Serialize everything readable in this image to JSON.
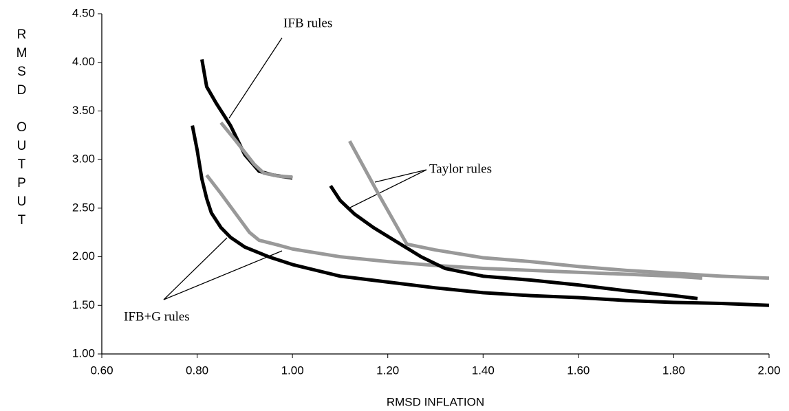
{
  "chart_data": {
    "type": "line",
    "x_label": "RMSD INFLATION",
    "y_label": "RMSD OUTPUT",
    "annotations": [
      "IFB rules",
      "Taylor rules",
      "IFB+G rules"
    ],
    "xlim": [
      0.6,
      2.0
    ],
    "xticks": [
      {
        "value": 0.6,
        "label": "0.60"
      },
      {
        "value": 0.8,
        "label": "0.80"
      },
      {
        "value": 1.0,
        "label": "1.00"
      },
      {
        "value": 1.2,
        "label": "1.20"
      },
      {
        "value": 1.4,
        "label": "1.40"
      },
      {
        "value": 1.6,
        "label": "1.60"
      },
      {
        "value": 1.8,
        "label": "1.80"
      },
      {
        "value": 2.0,
        "label": "2.00"
      }
    ],
    "ylim": [
      1.0,
      4.5
    ],
    "yticks": [
      {
        "value": 1.0,
        "label": "1.00"
      },
      {
        "value": 1.5,
        "label": "1.50"
      },
      {
        "value": 2.0,
        "label": "2.00"
      },
      {
        "value": 2.5,
        "label": "2.50"
      },
      {
        "value": 3.0,
        "label": "3.00"
      },
      {
        "value": 3.5,
        "label": "3.50"
      },
      {
        "value": 4.0,
        "label": "4.00"
      },
      {
        "value": 4.5,
        "label": "4.50"
      }
    ],
    "series": [
      {
        "color": "#000000",
        "x": [
          0.81,
          0.82,
          0.84,
          0.87,
          0.9,
          0.93,
          0.96,
          1.0
        ],
        "values": [
          4.03,
          3.75,
          3.58,
          3.35,
          3.05,
          2.88,
          2.84,
          2.81
        ]
      },
      {
        "color": "#999999",
        "x": [
          0.85,
          0.88,
          0.92,
          0.94,
          0.97,
          1.0
        ],
        "values": [
          3.38,
          3.2,
          2.95,
          2.86,
          2.83,
          2.82
        ]
      },
      {
        "color": "#000000",
        "x": [
          0.79,
          0.8,
          0.81,
          0.82,
          0.83,
          0.85,
          0.87,
          0.9,
          0.95,
          1.0,
          1.05,
          1.1,
          1.15,
          1.2,
          1.3,
          1.4,
          1.5,
          1.6,
          1.7,
          1.8,
          1.9,
          2.0
        ],
        "values": [
          3.35,
          3.1,
          2.8,
          2.6,
          2.45,
          2.3,
          2.2,
          2.1,
          2.0,
          1.92,
          1.86,
          1.8,
          1.77,
          1.74,
          1.68,
          1.63,
          1.6,
          1.58,
          1.55,
          1.53,
          1.52,
          1.5
        ]
      },
      {
        "color": "#999999",
        "x": [
          0.82,
          0.85,
          0.88,
          0.91,
          0.93,
          0.97,
          1.0,
          1.05,
          1.1,
          1.2,
          1.3,
          1.4,
          1.5,
          1.6,
          1.7,
          1.8,
          1.86
        ],
        "values": [
          2.84,
          2.65,
          2.45,
          2.25,
          2.17,
          2.12,
          2.08,
          2.04,
          2.0,
          1.95,
          1.91,
          1.88,
          1.86,
          1.84,
          1.82,
          1.8,
          1.78
        ]
      },
      {
        "color": "#000000",
        "x": [
          1.08,
          1.1,
          1.13,
          1.17,
          1.22,
          1.27,
          1.32,
          1.4,
          1.5,
          1.6,
          1.7,
          1.8,
          1.85
        ],
        "values": [
          2.73,
          2.58,
          2.44,
          2.3,
          2.15,
          2.0,
          1.88,
          1.8,
          1.76,
          1.71,
          1.65,
          1.6,
          1.57
        ]
      },
      {
        "color": "#999999",
        "x": [
          1.12,
          1.18,
          1.24,
          1.3,
          1.4,
          1.5,
          1.6,
          1.7,
          1.8,
          1.9,
          2.0
        ],
        "values": [
          3.19,
          2.65,
          2.13,
          2.07,
          1.99,
          1.95,
          1.9,
          1.86,
          1.83,
          1.8,
          1.78
        ]
      }
    ]
  }
}
